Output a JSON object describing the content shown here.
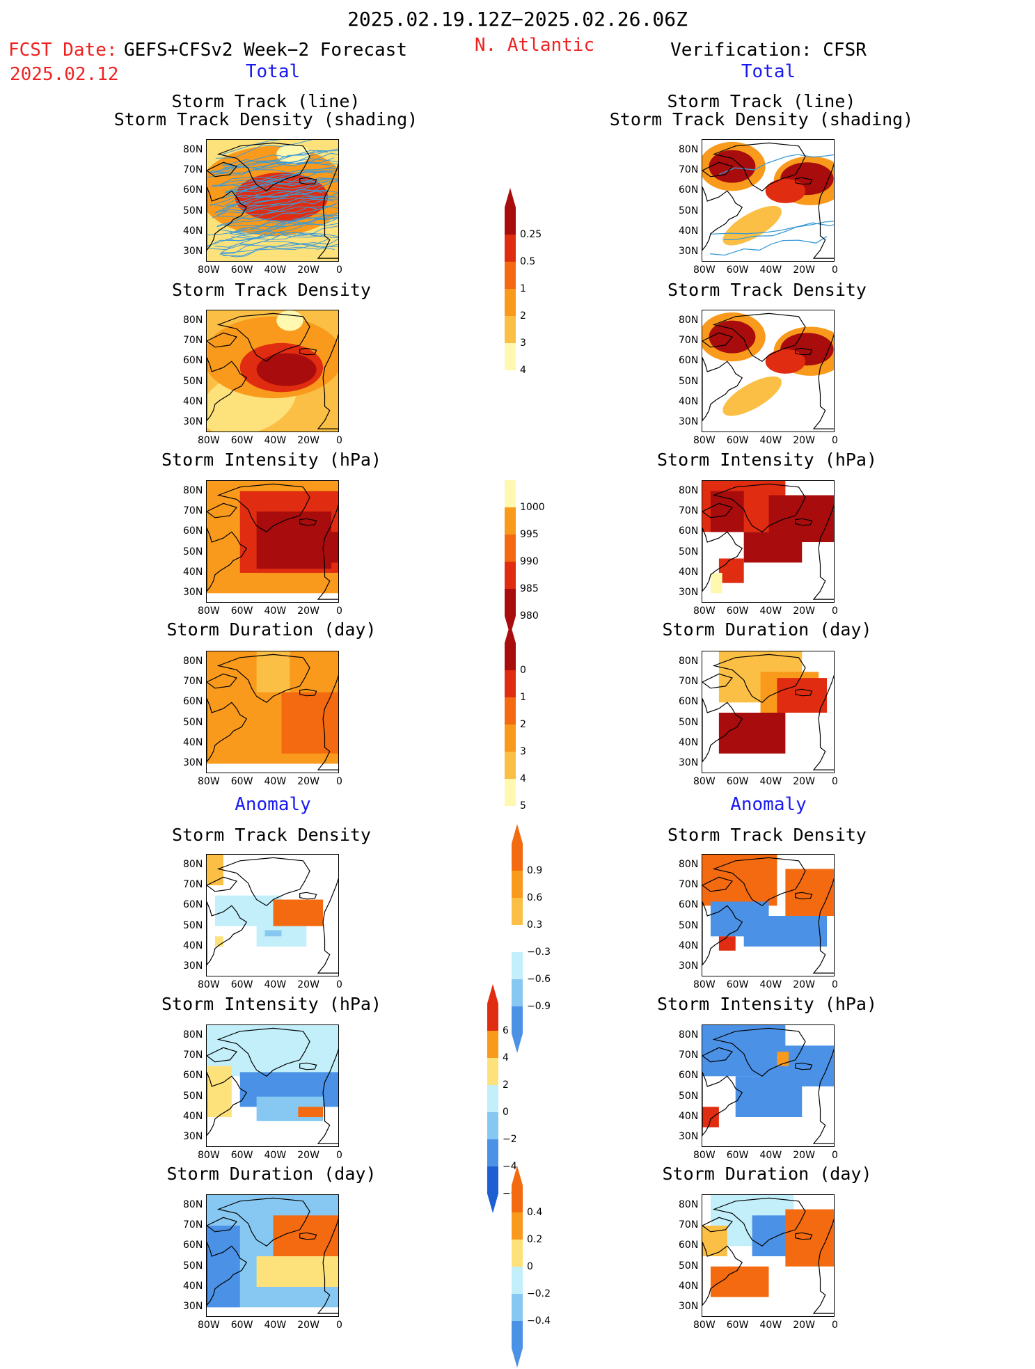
{
  "header": {
    "period": "2025.02.19.12Z−2025.02.26.06Z",
    "region": "N. Atlantic",
    "fcst_label": "FCST Date:",
    "fcst_model": "GEFS+CFSv2 Week−2 Forecast",
    "fcst_date": "2025.02.12",
    "verification": "Verification: CFSR",
    "total_left": "Total",
    "total_right": "Total",
    "anomaly_left": "Anomaly",
    "anomaly_right": "Anomaly"
  },
  "panel_titles": {
    "track_line": "Storm Track (line)",
    "track_density_shading": "Storm Track Density (shading)",
    "density": "Storm Track Density",
    "intensity": "Storm Intensity (hPa)",
    "duration": "Storm Duration (day)"
  },
  "axes": {
    "x_ticks": [
      "80W",
      "60W",
      "40W",
      "20W",
      "0"
    ],
    "y_ticks": [
      "80N",
      "70N",
      "60N",
      "50N",
      "40N",
      "30N"
    ]
  },
  "colors": {
    "c1": "#fff8b0",
    "c2": "#fde27c",
    "c3": "#fbbf45",
    "c4": "#f99a1c",
    "c5": "#f36a10",
    "c6": "#e02c10",
    "c7": "#a80c0c",
    "n1": "#c2effa",
    "n2": "#87c8f2",
    "n3": "#4b91e6",
    "n4": "#1d5fd2",
    "track": "#3a9ad8"
  },
  "colorbars": {
    "total_density": [
      "0.25",
      "0.5",
      "1",
      "2",
      "3",
      "4"
    ],
    "total_intensity": [
      "1000",
      "995",
      "990",
      "985",
      "980"
    ],
    "total_duration": [
      "0",
      "1",
      "2",
      "3",
      "4",
      "5"
    ],
    "anom_density": [
      "0.9",
      "0.6",
      "0.3",
      "−0.3",
      "−0.6",
      "−0.9"
    ],
    "anom_intensity": [
      "6",
      "4",
      "2",
      "0",
      "−2",
      "−4",
      "−6"
    ],
    "anom_duration": [
      "0.4",
      "0.2",
      "0",
      "−0.2",
      "−0.4"
    ]
  },
  "chart_data": [
    {
      "type": "heatmap",
      "title": "Storm Track (line) / Storm Track Density (shading)",
      "source": "GEFS+CFSv2",
      "section": "Total",
      "levels": [
        0.25,
        0.5,
        1,
        2,
        3,
        4
      ]
    },
    {
      "type": "heatmap",
      "title": "Storm Track (line) / Storm Track Density (shading)",
      "source": "CFSR",
      "section": "Total",
      "levels": [
        0.25,
        0.5,
        1,
        2,
        3,
        4
      ]
    },
    {
      "type": "heatmap",
      "title": "Storm Track Density",
      "source": "GEFS+CFSv2",
      "section": "Total",
      "levels": [
        0.25,
        0.5,
        1,
        2,
        3,
        4
      ]
    },
    {
      "type": "heatmap",
      "title": "Storm Track Density",
      "source": "CFSR",
      "section": "Total",
      "levels": [
        0.25,
        0.5,
        1,
        2,
        3,
        4
      ]
    },
    {
      "type": "heatmap",
      "title": "Storm Intensity (hPa)",
      "source": "GEFS+CFSv2",
      "section": "Total",
      "levels": [
        1000,
        995,
        990,
        985,
        980
      ]
    },
    {
      "type": "heatmap",
      "title": "Storm Intensity (hPa)",
      "source": "CFSR",
      "section": "Total",
      "levels": [
        1000,
        995,
        990,
        985,
        980
      ]
    },
    {
      "type": "heatmap",
      "title": "Storm Duration (day)",
      "source": "GEFS+CFSv2",
      "section": "Total",
      "levels": [
        0,
        1,
        2,
        3,
        4,
        5
      ]
    },
    {
      "type": "heatmap",
      "title": "Storm Duration (day)",
      "source": "CFSR",
      "section": "Total",
      "levels": [
        0,
        1,
        2,
        3,
        4,
        5
      ]
    },
    {
      "type": "heatmap",
      "title": "Storm Track Density",
      "source": "GEFS+CFSv2",
      "section": "Anomaly",
      "levels": [
        -0.9,
        -0.6,
        -0.3,
        0.3,
        0.6,
        0.9
      ]
    },
    {
      "type": "heatmap",
      "title": "Storm Track Density",
      "source": "CFSR",
      "section": "Anomaly",
      "levels": [
        -0.9,
        -0.6,
        -0.3,
        0.3,
        0.6,
        0.9
      ]
    },
    {
      "type": "heatmap",
      "title": "Storm Intensity (hPa)",
      "source": "GEFS+CFSv2",
      "section": "Anomaly",
      "levels": [
        -6,
        -4,
        -2,
        0,
        2,
        4,
        6
      ]
    },
    {
      "type": "heatmap",
      "title": "Storm Intensity (hPa)",
      "source": "CFSR",
      "section": "Anomaly",
      "levels": [
        -6,
        -4,
        -2,
        0,
        2,
        4,
        6
      ]
    },
    {
      "type": "heatmap",
      "title": "Storm Duration (day)",
      "source": "GEFS+CFSv2",
      "section": "Anomaly",
      "levels": [
        -0.4,
        -0.2,
        0,
        0.2,
        0.4
      ]
    },
    {
      "type": "heatmap",
      "title": "Storm Duration (day)",
      "source": "CFSR",
      "section": "Anomaly",
      "levels": [
        -0.4,
        -0.2,
        0,
        0.2,
        0.4
      ]
    }
  ]
}
